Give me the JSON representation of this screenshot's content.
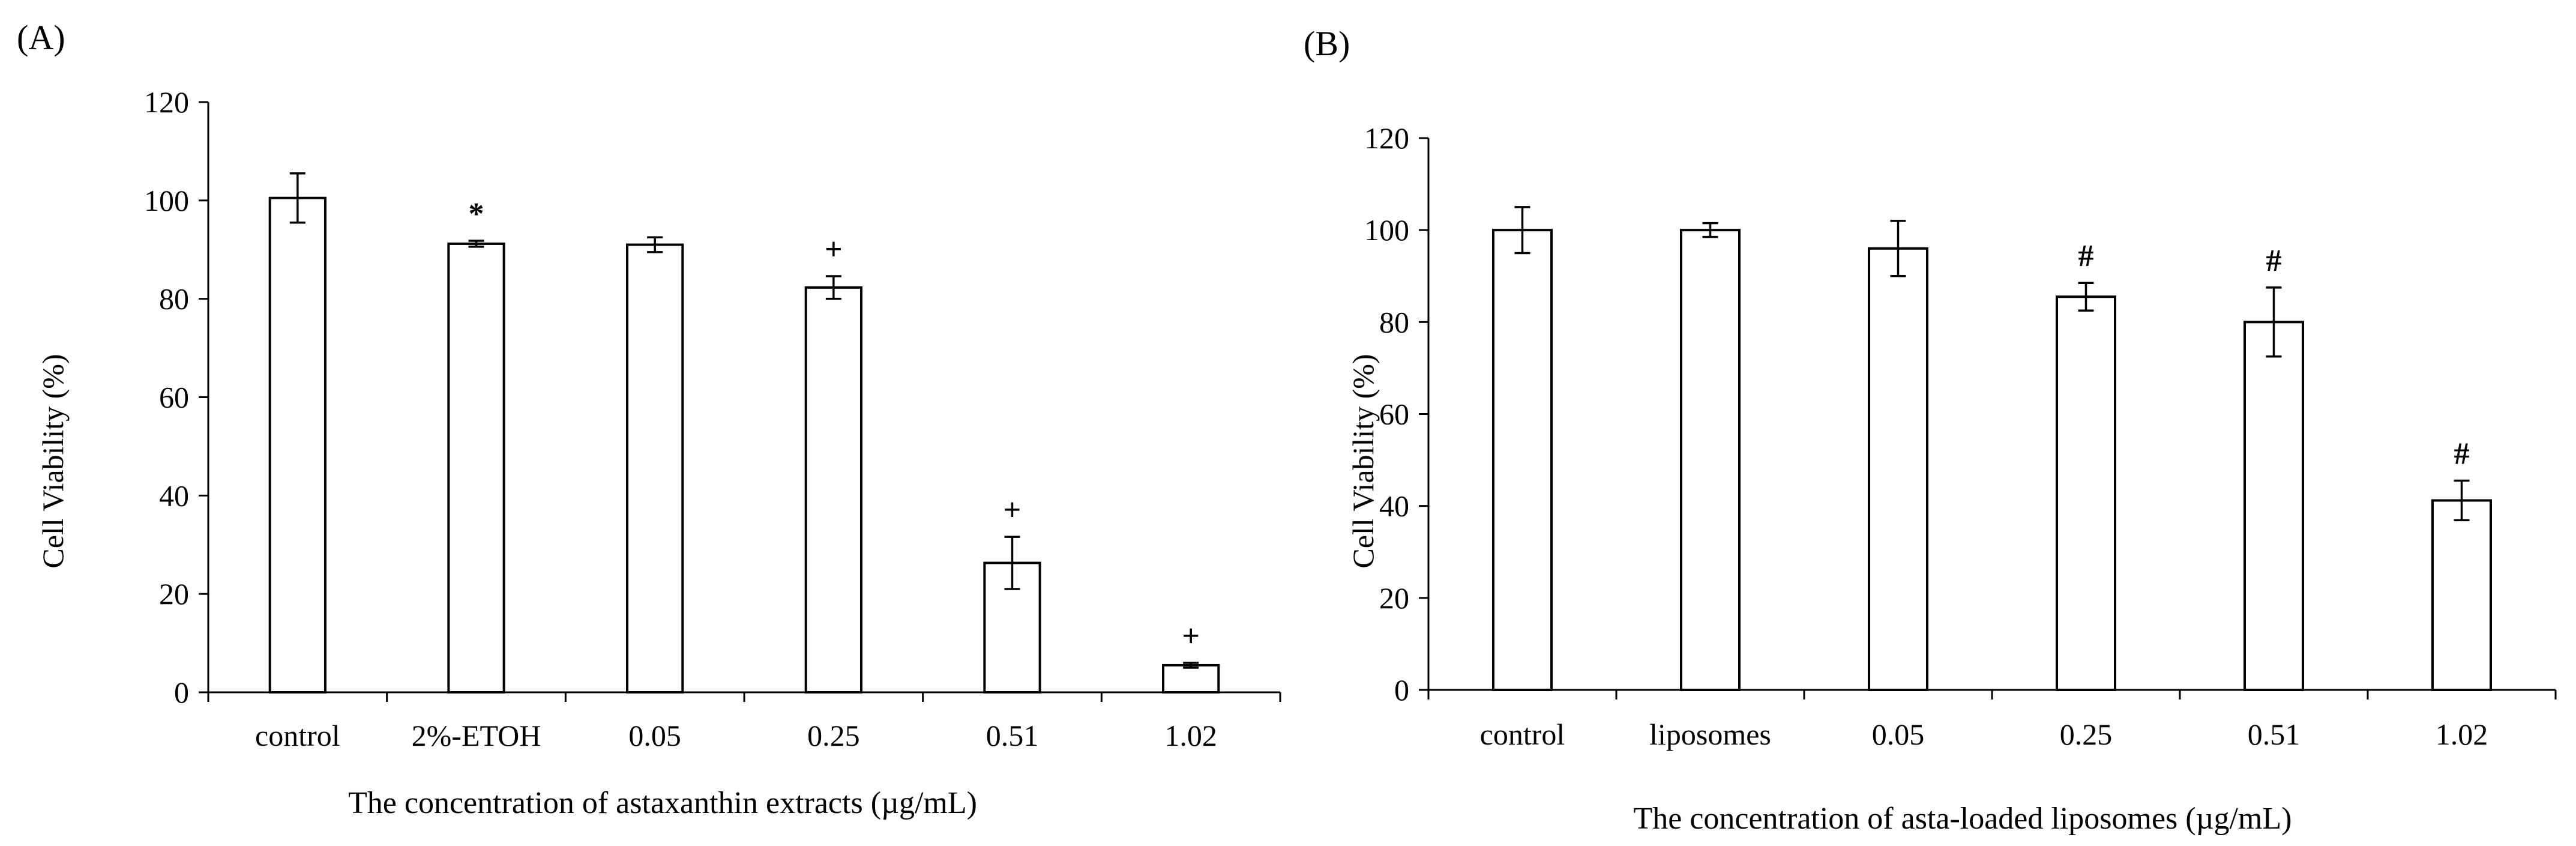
{
  "figure": {
    "panels": [
      {
        "panel_label": "(A)",
        "ylabel": "Cell Viability (%)",
        "xlabel": "The concentration of astaxanthin extracts (µg/mL)"
      },
      {
        "panel_label": "(B)",
        "ylabel": "Cell Viability (%)",
        "xlabel": "The concentration of asta-loaded liposomes (µg/mL)"
      }
    ]
  },
  "chart_data": [
    {
      "type": "bar",
      "panel": "A",
      "title": "",
      "xlabel": "The concentration of astaxanthin extracts (µg/mL)",
      "ylabel": "Cell Viability (%)",
      "categories": [
        "control",
        "2%-ETOH",
        "0.05",
        "0.25",
        "0.51",
        "1.02"
      ],
      "values": [
        100.5,
        91.2,
        91.0,
        82.3,
        26.3,
        5.5
      ],
      "errors": [
        5.0,
        0.6,
        1.5,
        2.3,
        5.3,
        0.5
      ],
      "annotations": [
        "",
        "*",
        "",
        "+",
        "+",
        "+"
      ],
      "ylim": [
        0,
        120
      ],
      "yticks": [
        "0",
        "20",
        "40",
        "60",
        "80",
        "100",
        "120"
      ],
      "bar_fill": "#ffffff",
      "bar_stroke": "#000000",
      "grid": false
    },
    {
      "type": "bar",
      "panel": "B",
      "title": "",
      "xlabel": "The concentration of asta-loaded liposomes (µg/mL)",
      "ylabel": "Cell Viability (%)",
      "categories": [
        "control",
        "liposomes",
        "0.05",
        "0.25",
        "0.51",
        "1.02"
      ],
      "values": [
        100.0,
        100.0,
        96.0,
        85.5,
        80.0,
        41.2
      ],
      "errors": [
        5.0,
        1.5,
        6.0,
        3.0,
        7.5,
        4.3
      ],
      "annotations": [
        "",
        "",
        "",
        "#",
        "#",
        "#"
      ],
      "ylim": [
        0,
        120
      ],
      "yticks": [
        "0",
        "20",
        "40",
        "60",
        "80",
        "100",
        "120"
      ],
      "bar_fill": "#ffffff",
      "bar_stroke": "#000000",
      "grid": false
    }
  ]
}
